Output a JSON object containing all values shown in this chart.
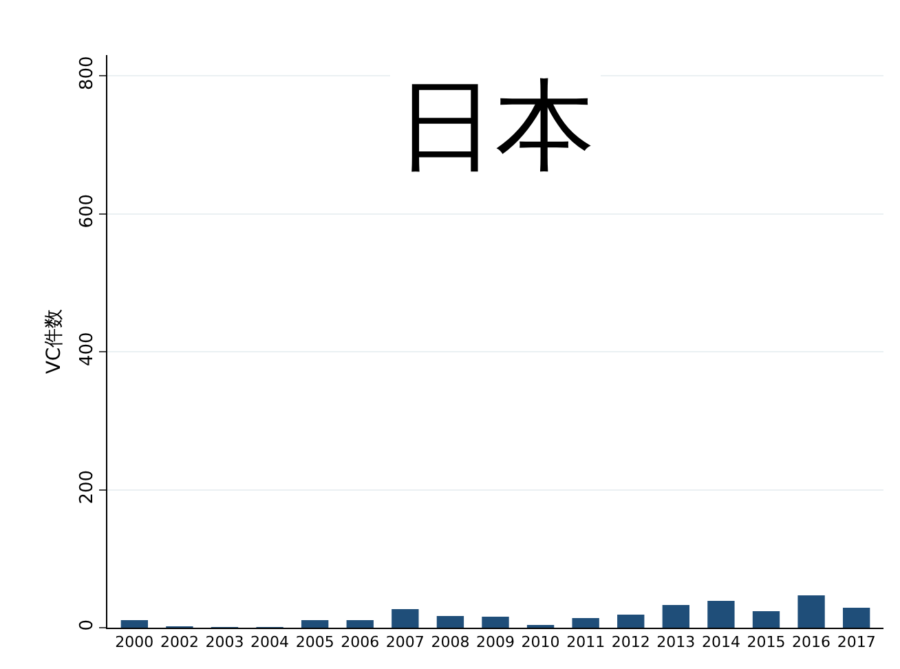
{
  "chart_data": {
    "type": "bar",
    "title": "日本",
    "ylabel": "VC件数",
    "categories": [
      "2000",
      "2002",
      "2003",
      "2004",
      "2005",
      "2006",
      "2007",
      "2008",
      "2009",
      "2010",
      "2011",
      "2012",
      "2013",
      "2014",
      "2015",
      "2016",
      "2017"
    ],
    "values": [
      11,
      2,
      1,
      1,
      11,
      11,
      27,
      17,
      16,
      4,
      14,
      19,
      33,
      39,
      24,
      47,
      29
    ],
    "color": "#1f4e79",
    "ylim": [
      0,
      830
    ],
    "yticks": [
      0,
      200,
      400,
      600,
      800
    ],
    "grid": "y",
    "legend": false
  }
}
